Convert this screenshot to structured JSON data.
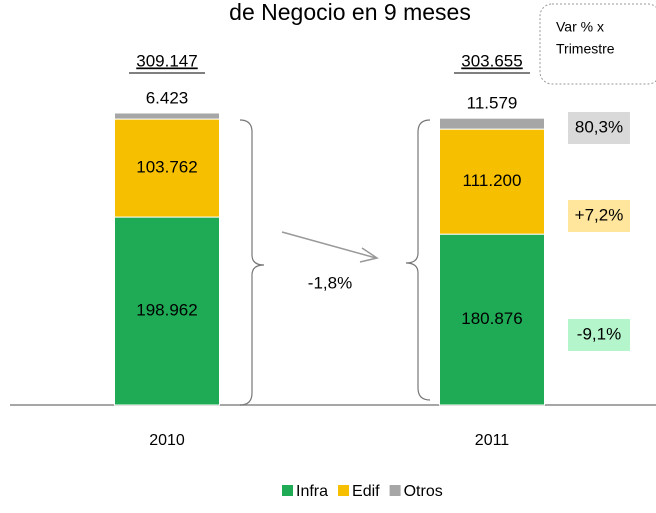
{
  "chart_data": {
    "type": "bar",
    "stacked": true,
    "title": "de Negocio en 9 meses",
    "categories": [
      "2010",
      "2011"
    ],
    "series": [
      {
        "name": "Infra",
        "color": "#1fab55",
        "values": [
          198962,
          180876
        ],
        "value_labels": [
          "198.962",
          "180.876"
        ],
        "change_label": "-9,1%",
        "change_color": "#b4f5cc"
      },
      {
        "name": "Edif",
        "color": "#f6c000",
        "values": [
          103762,
          111200
        ],
        "value_labels": [
          "103.762",
          "111.200"
        ],
        "change_label": "+7,2%",
        "change_color": "#ffe69c"
      },
      {
        "name": "Otros",
        "color": "#a6a6a6",
        "values": [
          6423,
          11579
        ],
        "value_labels": [
          "6.423",
          "11.579"
        ],
        "change_label": "80,3%",
        "change_color": "#d9d9d9"
      }
    ],
    "totals": {
      "values": [
        309147,
        303655
      ],
      "value_labels": [
        "309.147",
        "303.655"
      ]
    },
    "total_change": "-1,8%",
    "var_box": [
      "Var % x",
      "Trimestre"
    ]
  }
}
